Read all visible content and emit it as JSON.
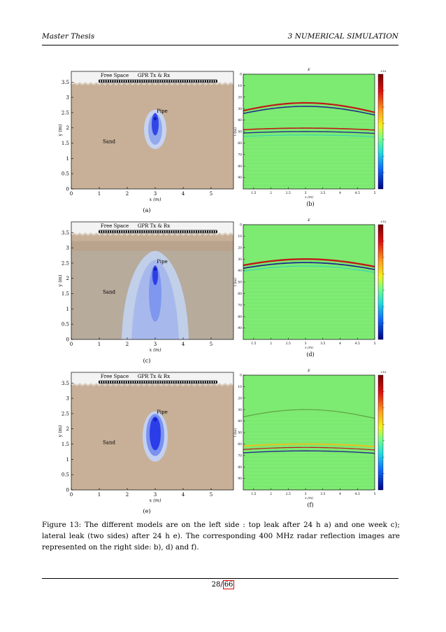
{
  "header": {
    "left": "Master Thesis",
    "right": "3   NUMERICAL SIMULATION"
  },
  "models": [
    {
      "label": "(a)",
      "free_space": "Free Space",
      "gpr": "GPR Tx & Rx",
      "pipe": "Pipe",
      "sand": "Sand",
      "xlabel": "x (m)",
      "ylabel": "y (m)",
      "xticks": [
        "0",
        "1",
        "2",
        "3",
        "4",
        "5"
      ],
      "yticks": [
        "0",
        "0.5",
        "1",
        "1.5",
        "2",
        "2.5",
        "3",
        "3.5"
      ],
      "leak": "top-short"
    },
    {
      "label": "(c)",
      "free_space": "Free Space",
      "gpr": "GPR Tx & Rx",
      "pipe": "Pipe",
      "sand": "Sand",
      "xlabel": "x (m)",
      "ylabel": "y (m)",
      "xticks": [
        "0",
        "1",
        "2",
        "3",
        "4",
        "5"
      ],
      "yticks": [
        "0",
        "0.5",
        "1",
        "1.5",
        "2",
        "2.5",
        "3",
        "3.5"
      ],
      "leak": "top-long"
    },
    {
      "label": "(e)",
      "free_space": "Free Space",
      "gpr": "GPR Tx & Rx",
      "pipe": "Pipe",
      "sand": "Sand",
      "xlabel": "x (m)",
      "ylabel": "y (m)",
      "xticks": [
        "0",
        "1",
        "2",
        "3",
        "4",
        "5"
      ],
      "yticks": [
        "0",
        "0.5",
        "1",
        "1.5",
        "2",
        "2.5",
        "3",
        "3.5"
      ],
      "leak": "lateral"
    }
  ],
  "radargrams": [
    {
      "label": "(b)",
      "title": "E",
      "xlabel": "x (m)",
      "ylabel": "t (ns)",
      "xticks": [
        "1.5",
        "2",
        "2.5",
        "3",
        "3.5",
        "4",
        "4.5",
        "5"
      ],
      "yticks": [
        "0",
        "10",
        "20",
        "30",
        "40",
        "50",
        "60",
        "70",
        "80",
        "90"
      ],
      "cbar_exp": "×10",
      "variant": "b"
    },
    {
      "label": "(d)",
      "title": "E",
      "xlabel": "x (m)",
      "ylabel": "t (ns)",
      "xticks": [
        "1.5",
        "2",
        "2.5",
        "3",
        "3.5",
        "4",
        "4.5",
        "5"
      ],
      "yticks": [
        "0",
        "10",
        "20",
        "30",
        "40",
        "50",
        "60",
        "70",
        "80",
        "90"
      ],
      "cbar_exp": "×10",
      "variant": "d"
    },
    {
      "label": "(f)",
      "title": "E",
      "xlabel": "x (m)",
      "ylabel": "t (ns)",
      "xticks": [
        "1.5",
        "2",
        "2.5",
        "3",
        "3.5",
        "4",
        "4.5",
        "5"
      ],
      "yticks": [
        "0",
        "10",
        "20",
        "30",
        "40",
        "50",
        "60",
        "70",
        "80",
        "90"
      ],
      "cbar_exp": "×10",
      "variant": "f"
    }
  ],
  "caption": "Figure 13: The different models are on the left side : top leak after 24 h a) and one week c); lateral leak (two sides) after 24 h e). The corresponding 400 MHz radar reflection images are represented on the right side: b), d) and f).",
  "page_number": "28",
  "page_total": "66",
  "colors": {
    "sand": "#c8b098",
    "sand_dark": "#b9a38c",
    "air": "#f3f3f3",
    "radar_bg": "#7dea72",
    "leak": "#3355ff"
  }
}
